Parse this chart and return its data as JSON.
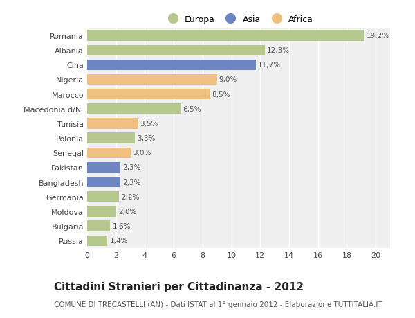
{
  "countries": [
    "Romania",
    "Albania",
    "Cina",
    "Nigeria",
    "Marocco",
    "Macedonia d/N.",
    "Tunisia",
    "Polonia",
    "Senegal",
    "Pakistan",
    "Bangladesh",
    "Germania",
    "Moldova",
    "Bulgaria",
    "Russia"
  ],
  "values": [
    19.2,
    12.3,
    11.7,
    9.0,
    8.5,
    6.5,
    3.5,
    3.3,
    3.0,
    2.3,
    2.3,
    2.2,
    2.0,
    1.6,
    1.4
  ],
  "labels": [
    "19,2%",
    "12,3%",
    "11,7%",
    "9,0%",
    "8,5%",
    "6,5%",
    "3,5%",
    "3,3%",
    "3,0%",
    "2,3%",
    "2,3%",
    "2,2%",
    "2,0%",
    "1,6%",
    "1,4%"
  ],
  "continents": [
    "Europa",
    "Europa",
    "Asia",
    "Africa",
    "Africa",
    "Europa",
    "Africa",
    "Europa",
    "Africa",
    "Asia",
    "Asia",
    "Europa",
    "Europa",
    "Europa",
    "Europa"
  ],
  "colors": {
    "Europa": "#b5c98e",
    "Asia": "#6d85c0",
    "Africa": "#f0c080"
  },
  "legend_order": [
    "Europa",
    "Asia",
    "Africa"
  ],
  "title": "Cittadini Stranieri per Cittadinanza - 2012",
  "subtitle": "COMUNE DI TRECASTELLI (AN) - Dati ISTAT al 1° gennaio 2012 - Elaborazione TUTTITALIA.IT",
  "xlim": [
    0,
    21
  ],
  "xticks": [
    0,
    2,
    4,
    6,
    8,
    10,
    12,
    14,
    16,
    18,
    20
  ],
  "background_color": "#ffffff",
  "plot_bg_color": "#efefef",
  "grid_color": "#ffffff",
  "bar_height": 0.72,
  "title_fontsize": 11,
  "subtitle_fontsize": 7.5,
  "label_fontsize": 7.5,
  "tick_fontsize": 8,
  "legend_fontsize": 9
}
